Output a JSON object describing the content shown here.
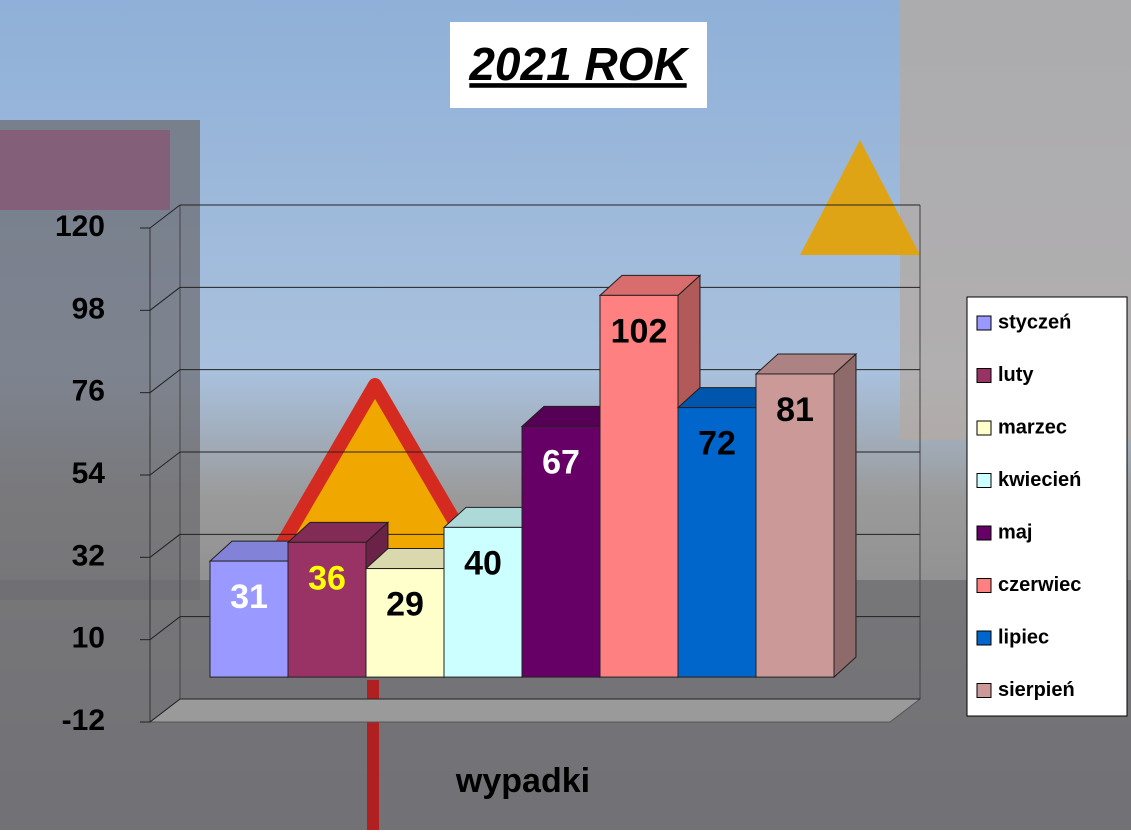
{
  "chart_data": {
    "type": "bar3d",
    "title": "2021 ROK",
    "categories": [
      "wypadki"
    ],
    "series": [
      {
        "name": "styczeń",
        "color": "#9999ff",
        "label_color": "#ffffff",
        "values": [
          31
        ]
      },
      {
        "name": "luty",
        "color": "#993366",
        "label_color": "#ffff00",
        "values": [
          36
        ]
      },
      {
        "name": "marzec",
        "color": "#ffffcc",
        "label_color": "#000000",
        "values": [
          29
        ]
      },
      {
        "name": "kwiecień",
        "color": "#ccffff",
        "label_color": "#000000",
        "values": [
          40
        ]
      },
      {
        "name": "maj",
        "color": "#660066",
        "label_color": "#ffffff",
        "values": [
          67
        ]
      },
      {
        "name": "czerwiec",
        "color": "#ff8080",
        "label_color": "#000000",
        "values": [
          102
        ]
      },
      {
        "name": "lipiec",
        "color": "#0066cc",
        "label_color": "#000000",
        "values": [
          72
        ]
      },
      {
        "name": "sierpień",
        "color": "#cc9999",
        "label_color": "#000000",
        "values": [
          81
        ]
      }
    ],
    "ylim": [
      -12,
      120
    ],
    "yticks": [
      -12,
      10,
      32,
      54,
      76,
      98,
      120
    ],
    "grid": true,
    "legend": "right"
  }
}
